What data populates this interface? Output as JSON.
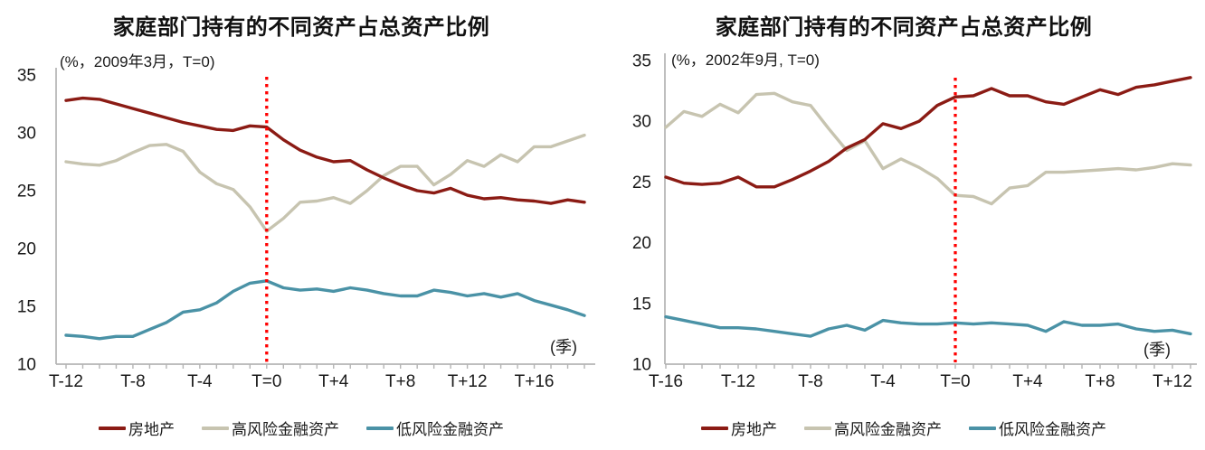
{
  "chart_data": [
    {
      "type": "line",
      "title": "家庭部门持有的不同资产占总资产比例",
      "subtitle": "(%，2009年3月，T=0)",
      "x_axis_unit": "(季)",
      "ylabel": "%",
      "ylim": [
        10,
        35
      ],
      "y_ticks": [
        10,
        15,
        20,
        25,
        30,
        35
      ],
      "x_start_quarter": -12,
      "x_end_quarter": 19,
      "x_tick_labels": [
        "T-12",
        "T-8",
        "T-4",
        "T=0",
        "T+4",
        "T+8",
        "T+12",
        "T+16"
      ],
      "x_tick_every": 4,
      "grid": false,
      "legend_position": "bottom",
      "t0_marker": {
        "position": "T=0",
        "style": "dotted",
        "color": "#ff0000"
      },
      "axis_color": "#b4b4b4",
      "text_color": "#1a1a1a",
      "series": [
        {
          "name": "房地产",
          "color": "#8b1b14",
          "values": [
            32.8,
            33.0,
            32.9,
            32.5,
            32.1,
            31.7,
            31.3,
            30.9,
            30.6,
            30.3,
            30.2,
            30.6,
            30.5,
            29.4,
            28.5,
            27.9,
            27.5,
            27.6,
            26.8,
            26.1,
            25.5,
            25.0,
            24.8,
            25.2,
            24.6,
            24.3,
            24.4,
            24.2,
            24.1,
            23.9,
            24.2,
            24.0
          ]
        },
        {
          "name": "高风险金融资产",
          "color": "#c7c4b0",
          "values": [
            27.5,
            27.3,
            27.2,
            27.6,
            28.3,
            28.9,
            29.0,
            28.4,
            26.6,
            25.6,
            25.1,
            23.6,
            21.5,
            22.6,
            24.0,
            24.1,
            24.4,
            23.9,
            25.0,
            26.3,
            27.1,
            27.1,
            25.5,
            26.4,
            27.6,
            27.1,
            28.1,
            27.5,
            28.8,
            28.8,
            29.3,
            29.8
          ]
        },
        {
          "name": "低风险金融资产",
          "color": "#4a92a6",
          "values": [
            12.5,
            12.4,
            12.2,
            12.4,
            12.4,
            13.0,
            13.6,
            14.5,
            14.7,
            15.3,
            16.3,
            17.0,
            17.2,
            16.6,
            16.4,
            16.5,
            16.3,
            16.6,
            16.4,
            16.1,
            15.9,
            15.9,
            16.4,
            16.2,
            15.9,
            16.1,
            15.8,
            16.1,
            15.5,
            15.1,
            14.7,
            14.2
          ]
        }
      ]
    },
    {
      "type": "line",
      "title": "家庭部门持有的不同资产占总资产比例",
      "subtitle": "(%，2002年9月, T=0)",
      "x_axis_unit": "(季)",
      "ylabel": "%",
      "ylim": [
        10,
        35
      ],
      "y_ticks": [
        10,
        15,
        20,
        25,
        30,
        35
      ],
      "x_start_quarter": -16,
      "x_end_quarter": 13,
      "x_tick_labels": [
        "T-16",
        "T-12",
        "T-8",
        "T-4",
        "T=0",
        "T+4",
        "T+8",
        "T+12"
      ],
      "x_tick_every": 4,
      "grid": false,
      "legend_position": "bottom",
      "t0_marker": {
        "position": "T=0",
        "style": "dotted",
        "color": "#ff0000"
      },
      "axis_color": "#b4b4b4",
      "text_color": "#1a1a1a",
      "series": [
        {
          "name": "房地产",
          "color": "#8b1b14",
          "values": [
            25.4,
            24.9,
            24.8,
            24.9,
            25.4,
            24.6,
            24.6,
            25.2,
            25.9,
            26.7,
            27.8,
            28.5,
            29.8,
            29.4,
            30.0,
            31.3,
            32.0,
            32.1,
            32.7,
            32.1,
            32.1,
            31.6,
            31.4,
            32.0,
            32.6,
            32.2,
            32.8,
            33.0,
            33.3,
            33.6
          ]
        },
        {
          "name": "高风险金融资产",
          "color": "#c7c4b0",
          "values": [
            29.5,
            30.8,
            30.4,
            31.4,
            30.7,
            32.2,
            32.3,
            31.6,
            31.3,
            29.4,
            27.6,
            28.4,
            26.1,
            26.9,
            26.2,
            25.3,
            23.9,
            23.8,
            23.2,
            24.5,
            24.7,
            25.8,
            25.8,
            25.9,
            26.0,
            26.1,
            26.0,
            26.2,
            26.5,
            26.4
          ]
        },
        {
          "name": "低风险金融资产",
          "color": "#4a92a6",
          "values": [
            13.9,
            13.6,
            13.3,
            13.0,
            13.0,
            12.9,
            12.7,
            12.5,
            12.3,
            12.9,
            13.2,
            12.8,
            13.6,
            13.4,
            13.3,
            13.3,
            13.4,
            13.3,
            13.4,
            13.3,
            13.2,
            12.7,
            13.5,
            13.2,
            13.2,
            13.3,
            12.9,
            12.7,
            12.8,
            12.5
          ]
        }
      ]
    }
  ]
}
